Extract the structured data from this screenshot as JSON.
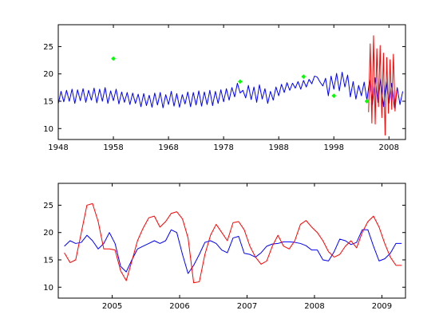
{
  "chart_data": [
    {
      "type": "line",
      "title": "",
      "xlabel": "",
      "ylabel": "",
      "xlim": [
        1948,
        2011
      ],
      "ylim": [
        8,
        29
      ],
      "grid": false,
      "xticks": [
        1948,
        1958,
        1968,
        1978,
        1988,
        1998,
        2008
      ],
      "xtick_labels": [
        "1948",
        "1958",
        "1968",
        "1978",
        "1988",
        "1998",
        "2008"
      ],
      "yticks": [
        10,
        15,
        20,
        25
      ],
      "ytick_labels": [
        "10",
        "15",
        "20",
        "25"
      ],
      "series": [
        {
          "color": "#0000ff",
          "kind": "line",
          "x": [
            1948.0,
            1948.5,
            1949.0,
            1949.5,
            1950.0,
            1950.5,
            1951.0,
            1951.5,
            1952.0,
            1952.5,
            1953.0,
            1953.5,
            1954.0,
            1954.5,
            1955.0,
            1955.5,
            1956.0,
            1956.5,
            1957.0,
            1957.5,
            1958.0,
            1958.5,
            1959.0,
            1959.5,
            1960.0,
            1960.5,
            1961.0,
            1961.5,
            1962.0,
            1962.5,
            1963.0,
            1963.5,
            1964.0,
            1964.5,
            1965.0,
            1965.5,
            1966.0,
            1966.5,
            1967.0,
            1967.5,
            1968.0,
            1968.5,
            1969.0,
            1969.5,
            1970.0,
            1970.5,
            1971.0,
            1971.5,
            1972.0,
            1972.5,
            1973.0,
            1973.5,
            1974.0,
            1974.5,
            1975.0,
            1975.5,
            1976.0,
            1976.5,
            1977.0,
            1977.5,
            1978.0,
            1978.5,
            1979.0,
            1979.5,
            1980.0,
            1980.5,
            1981.0,
            1981.5,
            1982.0,
            1982.5,
            1983.0,
            1983.5,
            1984.0,
            1984.5,
            1985.0,
            1985.5,
            1986.0,
            1986.5,
            1987.0,
            1987.5,
            1988.0,
            1988.5,
            1989.0,
            1989.5,
            1990.0,
            1990.5,
            1991.0,
            1991.5,
            1992.0,
            1992.5,
            1993.0,
            1993.5,
            1994.0,
            1994.5,
            1995.0,
            1995.5,
            1996.0,
            1996.5,
            1997.0,
            1997.5,
            1998.0,
            1998.5,
            1999.0,
            1999.5,
            2000.0,
            2000.5,
            2001.0,
            2001.5,
            2002.0,
            2002.5,
            2003.0,
            2003.5,
            2004.0,
            2004.5,
            2005.0,
            2005.5,
            2006.0,
            2006.5,
            2007.0,
            2007.5,
            2008.0,
            2008.5,
            2009.0,
            2009.5,
            2010.0,
            2010.5
          ],
          "y": [
            14.5,
            16.8,
            14.9,
            17.0,
            15.0,
            17.2,
            14.6,
            17.1,
            15.1,
            17.3,
            14.8,
            17.0,
            15.2,
            17.4,
            14.7,
            17.2,
            15.0,
            17.5,
            14.6,
            16.9,
            15.1,
            17.2,
            14.5,
            16.7,
            14.8,
            16.6,
            14.4,
            16.5,
            14.6,
            16.3,
            14.0,
            16.4,
            14.2,
            16.1,
            13.9,
            16.5,
            14.3,
            16.6,
            13.8,
            16.2,
            14.4,
            16.8,
            14.1,
            16.4,
            13.9,
            16.2,
            14.5,
            16.7,
            14.0,
            16.6,
            14.3,
            16.9,
            14.1,
            16.7,
            14.4,
            17.0,
            14.2,
            16.8,
            14.6,
            17.1,
            14.9,
            17.3,
            15.2,
            17.5,
            15.8,
            18.3,
            16.5,
            17.0,
            15.6,
            17.9,
            15.3,
            17.6,
            14.8,
            18.0,
            15.4,
            17.3,
            14.6,
            16.8,
            15.2,
            17.6,
            16.0,
            18.1,
            16.6,
            18.4,
            17.0,
            18.3,
            17.4,
            18.6,
            17.2,
            18.8,
            17.6,
            19.0,
            18.2,
            19.6,
            19.4,
            18.5,
            17.8,
            19.2,
            16.0,
            19.6,
            17.2,
            20.1,
            16.9,
            20.3,
            17.6,
            19.8,
            15.8,
            18.6,
            15.4,
            17.9,
            16.0,
            18.5,
            15.2,
            18.9,
            14.4,
            19.3,
            14.8,
            19.1,
            14.0,
            18.6,
            14.6,
            18.3,
            13.8,
            17.5,
            14.4,
            16.8
          ]
        },
        {
          "color": "#ff0000",
          "kind": "line",
          "x": [
            2004.3,
            2004.6,
            2004.9,
            2005.2,
            2005.5,
            2005.8,
            2006.1,
            2006.4,
            2006.7,
            2007.0,
            2007.3,
            2007.6,
            2007.9,
            2008.2,
            2008.5,
            2008.8,
            2009.1,
            2009.4
          ],
          "y": [
            13.0,
            25.5,
            11.0,
            27.0,
            10.8,
            24.6,
            14.0,
            25.2,
            12.0,
            23.8,
            8.8,
            23.0,
            12.8,
            22.6,
            13.5,
            23.6,
            13.2,
            17.0
          ]
        },
        {
          "color": "#00ff00",
          "kind": "scatter",
          "x": [
            1958.0,
            1981.0,
            1992.5,
            1998.0,
            2004.0
          ],
          "y": [
            22.8,
            18.6,
            19.5,
            16.0,
            15.0
          ]
        }
      ]
    },
    {
      "type": "line",
      "title": "",
      "xlabel": "",
      "ylabel": "",
      "xlim": [
        2004.2,
        2009.35
      ],
      "ylim": [
        8,
        29
      ],
      "grid": false,
      "xticks": [
        2005,
        2006,
        2007,
        2008,
        2009
      ],
      "xtick_labels": [
        "2005",
        "2006",
        "2007",
        "2008",
        "2009"
      ],
      "yticks": [
        10,
        15,
        20,
        25
      ],
      "ytick_labels": [
        "10",
        "15",
        "20",
        "25"
      ],
      "series": [
        {
          "color": "#0000ff",
          "kind": "line",
          "x": [
            2004.29,
            2004.375,
            2004.458,
            2004.542,
            2004.625,
            2004.708,
            2004.792,
            2004.875,
            2004.958,
            2005.042,
            2005.125,
            2005.208,
            2005.292,
            2005.375,
            2005.458,
            2005.542,
            2005.625,
            2005.708,
            2005.792,
            2005.875,
            2005.958,
            2006.042,
            2006.125,
            2006.208,
            2006.292,
            2006.375,
            2006.458,
            2006.542,
            2006.625,
            2006.708,
            2006.792,
            2006.875,
            2006.958,
            2007.042,
            2007.125,
            2007.208,
            2007.292,
            2007.375,
            2007.458,
            2007.542,
            2007.625,
            2007.708,
            2007.792,
            2007.875,
            2007.958,
            2008.042,
            2008.125,
            2008.208,
            2008.292,
            2008.375,
            2008.458,
            2008.542,
            2008.625,
            2008.708,
            2008.792,
            2008.875,
            2008.958,
            2009.042,
            2009.125,
            2009.208,
            2009.292
          ],
          "y": [
            17.5,
            18.5,
            18.0,
            18.2,
            19.5,
            18.5,
            17.0,
            18.0,
            20.0,
            18.0,
            13.8,
            12.8,
            15.0,
            17.0,
            17.5,
            18.0,
            18.5,
            18.0,
            18.5,
            20.5,
            20.0,
            16.0,
            12.5,
            14.0,
            16.0,
            18.2,
            18.5,
            18.0,
            16.8,
            16.3,
            19.0,
            19.3,
            16.2,
            16.0,
            15.5,
            16.3,
            17.5,
            17.9,
            18.0,
            18.3,
            18.3,
            18.2,
            18.0,
            17.6,
            16.8,
            16.8,
            15.0,
            14.8,
            16.5,
            18.8,
            18.5,
            17.8,
            18.2,
            20.5,
            20.5,
            17.5,
            14.8,
            15.2,
            16.2,
            18.0,
            18.0
          ]
        },
        {
          "color": "#ff0000",
          "kind": "line",
          "x": [
            2004.29,
            2004.375,
            2004.458,
            2004.542,
            2004.625,
            2004.708,
            2004.792,
            2004.875,
            2004.958,
            2005.042,
            2005.125,
            2005.208,
            2005.292,
            2005.375,
            2005.458,
            2005.542,
            2005.625,
            2005.708,
            2005.792,
            2005.875,
            2005.958,
            2006.042,
            2006.125,
            2006.208,
            2006.292,
            2006.375,
            2006.458,
            2006.542,
            2006.625,
            2006.708,
            2006.792,
            2006.875,
            2006.958,
            2007.042,
            2007.125,
            2007.208,
            2007.292,
            2007.375,
            2007.458,
            2007.542,
            2007.625,
            2007.708,
            2007.792,
            2007.875,
            2007.958,
            2008.042,
            2008.125,
            2008.208,
            2008.292,
            2008.375,
            2008.458,
            2008.542,
            2008.625,
            2008.708,
            2008.792,
            2008.875,
            2008.958,
            2009.042,
            2009.125,
            2009.208,
            2009.292
          ],
          "y": [
            16.3,
            14.5,
            15.0,
            20.0,
            25.0,
            25.3,
            22.0,
            17.0,
            17.0,
            16.8,
            13.0,
            11.2,
            14.8,
            18.5,
            20.8,
            22.7,
            23.0,
            21.0,
            22.0,
            23.5,
            23.8,
            22.5,
            19.0,
            10.8,
            11.0,
            16.0,
            19.5,
            21.5,
            20.0,
            18.5,
            21.8,
            22.0,
            20.5,
            17.5,
            15.5,
            14.2,
            14.8,
            17.5,
            19.5,
            17.5,
            17.0,
            18.5,
            21.5,
            22.2,
            21.0,
            20.0,
            18.5,
            16.5,
            15.5,
            16.0,
            17.5,
            18.5,
            17.2,
            20.0,
            22.0,
            23.0,
            21.0,
            18.0,
            15.5,
            14.0,
            14.0
          ]
        }
      ]
    }
  ]
}
